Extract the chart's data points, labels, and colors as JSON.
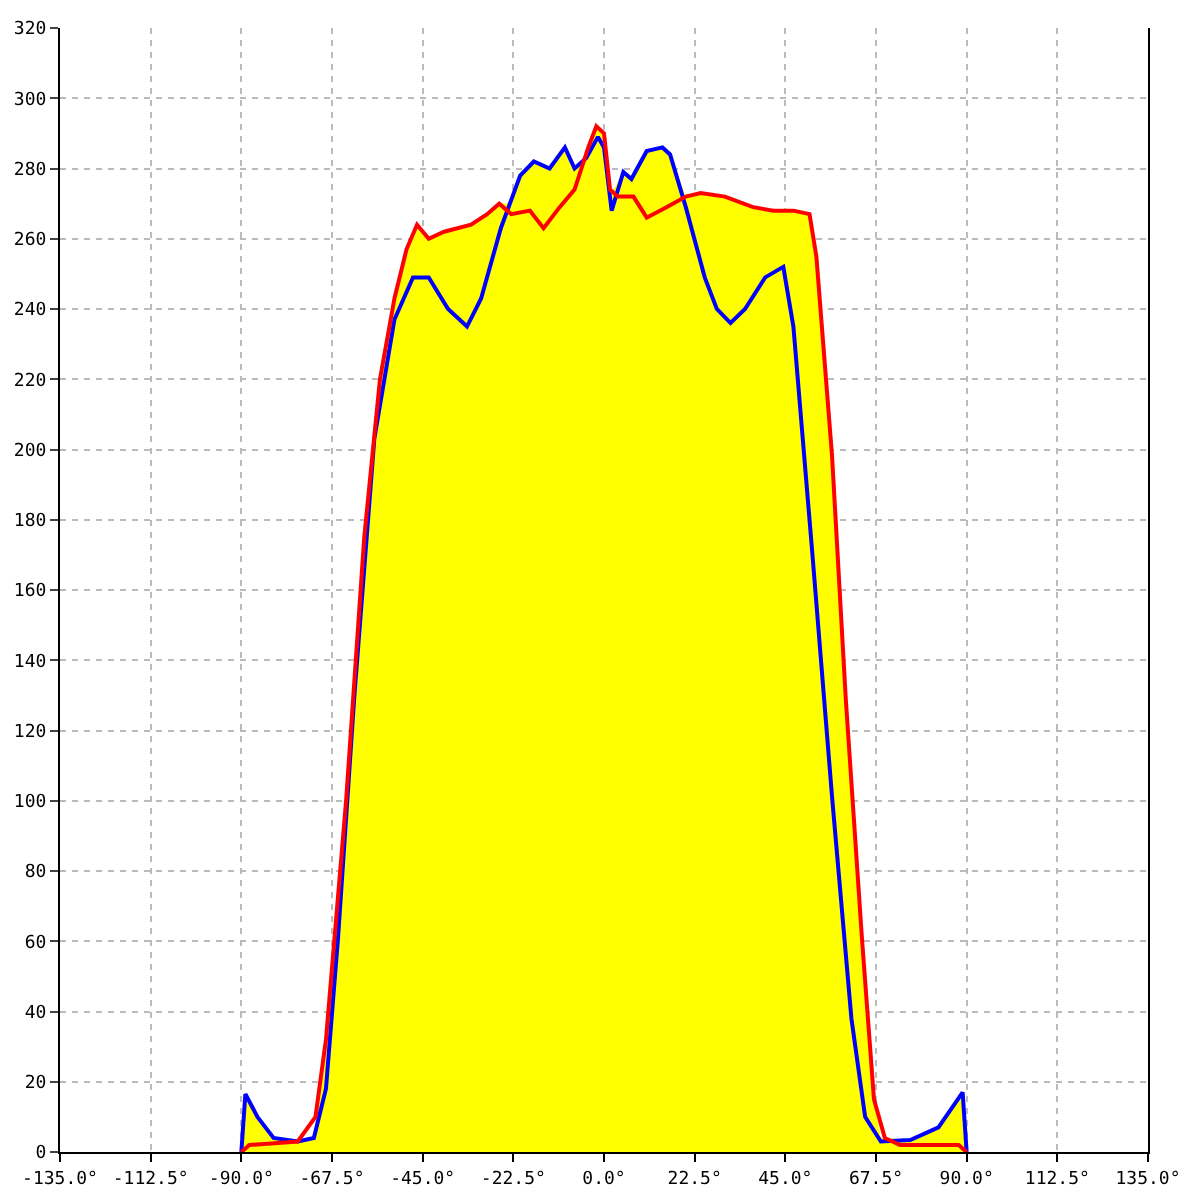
{
  "chart_data": {
    "type": "line",
    "line_style": "solid",
    "marker": "none",
    "grid": true,
    "xlim": [
      -135,
      135
    ],
    "ylim": [
      0,
      320
    ],
    "xticks": [
      {
        "value": -135,
        "label": "-135.0°"
      },
      {
        "value": -112.5,
        "label": "-112.5°"
      },
      {
        "value": -90,
        "label": "-90.0°"
      },
      {
        "value": -67.5,
        "label": "-67.5°"
      },
      {
        "value": -45,
        "label": "-45.0°"
      },
      {
        "value": -22.5,
        "label": "-22.5°"
      },
      {
        "value": 0,
        "label": "0.0°"
      },
      {
        "value": 22.5,
        "label": "22.5°"
      },
      {
        "value": 45,
        "label": "45.0°"
      },
      {
        "value": 67.5,
        "label": "67.5°"
      },
      {
        "value": 90,
        "label": "90.0°"
      },
      {
        "value": 112.5,
        "label": "112.5°"
      },
      {
        "value": 135,
        "label": "135.0°"
      }
    ],
    "yticks": [
      0,
      20,
      40,
      60,
      80,
      100,
      120,
      140,
      160,
      180,
      200,
      220,
      240,
      260,
      280,
      300,
      320
    ],
    "series": [
      {
        "type": "area",
        "color": "#ffff00",
        "x": [
          -135,
          -90,
          -89,
          -86,
          -82,
          -76,
          -72,
          -69,
          -64,
          -59.5,
          -55.6,
          -52,
          -49,
          -46.4,
          -43.5,
          -39.7,
          -33,
          -29,
          -26,
          -23,
          -20.8,
          -17.4,
          -13.5,
          -9.7,
          -7.3,
          -4.4,
          -1.9,
          0,
          1.9,
          4.8,
          6.8,
          10.6,
          14.5,
          16.4,
          20.3,
          24,
          30,
          37,
          42,
          47,
          51,
          52.7,
          56.6,
          60,
          64,
          67,
          68.7,
          76,
          83,
          89,
          90,
          135
        ],
        "values": [
          0,
          0,
          16.5,
          10,
          4,
          3,
          4,
          32,
          100,
          175,
          220,
          243,
          257,
          264,
          260,
          262,
          264,
          267,
          270,
          270,
          278,
          282,
          280,
          286,
          280,
          283,
          292,
          290,
          273,
          279,
          277,
          285,
          286,
          284,
          272,
          273,
          272,
          269,
          268,
          268,
          267,
          255,
          198,
          129,
          61,
          15,
          4,
          3.4,
          7,
          17,
          0,
          0
        ]
      },
      {
        "color": "#0000ff",
        "x": [
          -90,
          -89,
          -86,
          -82,
          -76,
          -72,
          -69,
          -66,
          -62,
          -57,
          -52,
          -47.4,
          -43.5,
          -38.7,
          -34,
          -30.5,
          -25.6,
          -20.8,
          -17.4,
          -13.5,
          -9.7,
          -7.3,
          -4.4,
          -1.5,
          0,
          1.9,
          4.8,
          6.8,
          10.6,
          14.5,
          16.4,
          20.3,
          25,
          28,
          31.4,
          35,
          40,
          44.5,
          47,
          51.8,
          56.6,
          61.4,
          64.8,
          68.7,
          76,
          83,
          89,
          90
        ],
        "values": [
          0,
          16.5,
          10,
          4,
          3,
          4,
          18,
          61,
          129,
          203,
          237,
          249,
          249,
          240,
          235,
          243,
          263,
          278,
          282,
          280,
          286,
          280,
          283,
          289,
          286,
          268,
          279,
          277,
          285,
          286,
          284,
          269,
          249,
          240,
          236,
          240,
          249,
          252,
          235,
          169,
          101,
          38,
          10,
          3,
          3.4,
          7,
          17,
          0
        ]
      },
      {
        "color": "#ff0000",
        "x": [
          -90,
          -88,
          -76,
          -71.6,
          -69,
          -64,
          -59.5,
          -55.6,
          -52,
          -49,
          -46.4,
          -43.5,
          -39.7,
          -33,
          -29,
          -26,
          -23,
          -18.4,
          -15,
          -11,
          -7.3,
          -3.9,
          -1.9,
          0,
          1.5,
          3.4,
          7.3,
          10.6,
          15.5,
          20.3,
          24,
          30,
          37,
          42,
          47,
          51,
          52.7,
          56.6,
          60,
          64,
          67,
          69.7,
          73.5,
          88,
          90
        ],
        "values": [
          0,
          2,
          3,
          10,
          32,
          100,
          175,
          220,
          243,
          257,
          264,
          260,
          262,
          264,
          267,
          270,
          267,
          268,
          263,
          269,
          274,
          286,
          292,
          290,
          274,
          272,
          272,
          266,
          269,
          272,
          273,
          272,
          269,
          268,
          268,
          267,
          255,
          198,
          129,
          61,
          15,
          4,
          2,
          2,
          0
        ]
      }
    ]
  }
}
